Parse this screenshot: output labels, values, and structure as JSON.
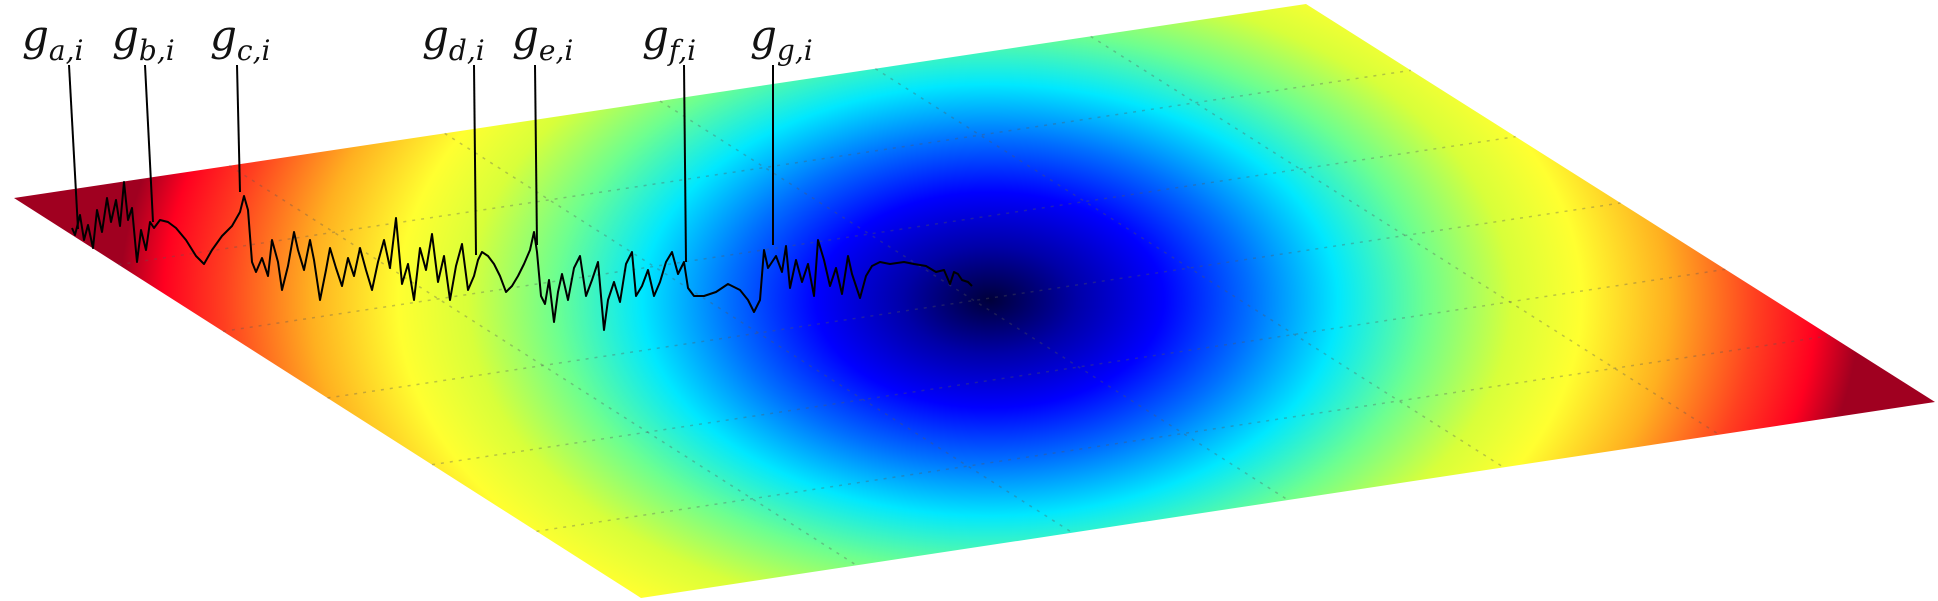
{
  "figure": {
    "colormap": "jet",
    "surface_colors": [
      "#7f0000",
      "#ff0000",
      "#ff7f00",
      "#ffff00",
      "#7fff7f",
      "#00ffff",
      "#007fff",
      "#0000ff",
      "#00007f"
    ]
  },
  "labels": [
    {
      "base": "g",
      "sub": "a,i"
    },
    {
      "base": "g",
      "sub": "b,i"
    },
    {
      "base": "g",
      "sub": "c,i"
    },
    {
      "base": "g",
      "sub": "d,i"
    },
    {
      "base": "g",
      "sub": "e,i"
    },
    {
      "base": "g",
      "sub": "f,i"
    },
    {
      "base": "g",
      "sub": "g,i"
    }
  ]
}
